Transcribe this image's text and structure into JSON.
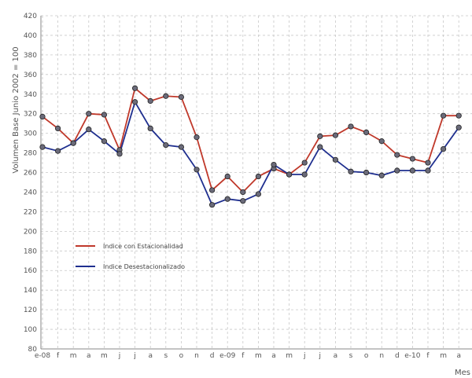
{
  "chart_data": {
    "type": "line",
    "ylabel": "Volumen Base Junio 2002 = 100",
    "xlabel": "Mes",
    "ylim": [
      80,
      420
    ],
    "y_ticks": [
      80,
      100,
      120,
      140,
      160,
      180,
      200,
      220,
      240,
      260,
      280,
      300,
      320,
      340,
      360,
      380,
      400,
      420
    ],
    "grid": true,
    "legend_position": "center-left",
    "categories": [
      "e-08",
      "f",
      "m",
      "a",
      "m",
      "j",
      "j",
      "a",
      "s",
      "o",
      "n",
      "d",
      "e-09",
      "f",
      "m",
      "a",
      "m",
      "j",
      "j",
      "a",
      "s",
      "o",
      "n",
      "d",
      "e-10",
      "f",
      "m",
      "a"
    ],
    "series": [
      {
        "name": "Indice con Estacionalidad",
        "color": "#c0392b",
        "values": [
          317,
          305,
          290,
          320,
          319,
          283,
          346,
          333,
          338,
          337,
          296,
          242,
          256,
          240,
          256,
          264,
          258,
          270,
          297,
          298,
          307,
          301,
          292,
          278,
          274,
          270,
          318,
          318
        ]
      },
      {
        "name": "Indice Desestacionalizado",
        "color": "#1f2f8f",
        "values": [
          286,
          282,
          290,
          304,
          292,
          279,
          332,
          305,
          288,
          286,
          263,
          227,
          233,
          231,
          238,
          268,
          258,
          258,
          286,
          273,
          261,
          260,
          257,
          262,
          262,
          262,
          284,
          306
        ]
      }
    ]
  }
}
